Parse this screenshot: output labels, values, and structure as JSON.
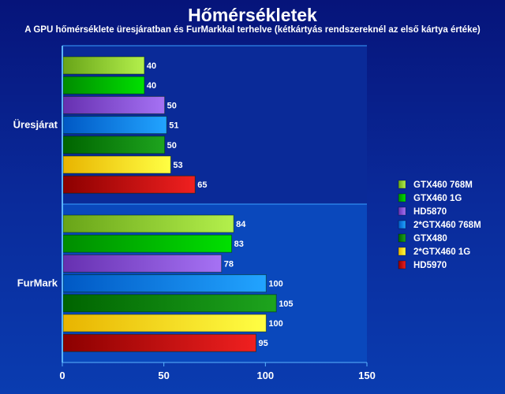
{
  "chart_data": {
    "type": "bar",
    "orientation": "horizontal",
    "title": "Hőmérsékletek",
    "subtitle": "A GPU hőmérséklete üresjáratban és FurMarkkal terhelve (kétkártyás rendszereknél az első kártya értéke)",
    "categories": [
      "Üresjárat",
      "FurMark"
    ],
    "series": [
      {
        "name": "GTX460 768M",
        "values": [
          40,
          84
        ],
        "colors": [
          "#68a418",
          "#b4f04c"
        ]
      },
      {
        "name": "GTX460 1G",
        "values": [
          40,
          83
        ],
        "colors": [
          "#008c00",
          "#00e000"
        ]
      },
      {
        "name": "HD5870",
        "values": [
          50,
          78
        ],
        "colors": [
          "#6630b0",
          "#a672f4"
        ]
      },
      {
        "name": "2*GTX460 768M",
        "values": [
          51,
          100
        ],
        "colors": [
          "#0058c4",
          "#22a4ff"
        ]
      },
      {
        "name": "GTX480",
        "values": [
          50,
          105
        ],
        "colors": [
          "#006400",
          "#1ea41e"
        ]
      },
      {
        "name": "2*GTX460 1G",
        "values": [
          53,
          100
        ],
        "colors": [
          "#e8b400",
          "#ffff44"
        ]
      },
      {
        "name": "HD5970",
        "values": [
          65,
          95
        ],
        "colors": [
          "#8c0000",
          "#f02020"
        ]
      }
    ],
    "xlim": [
      0,
      150
    ],
    "xticks": [
      "0",
      "50",
      "100",
      "150"
    ],
    "legend": "right"
  }
}
